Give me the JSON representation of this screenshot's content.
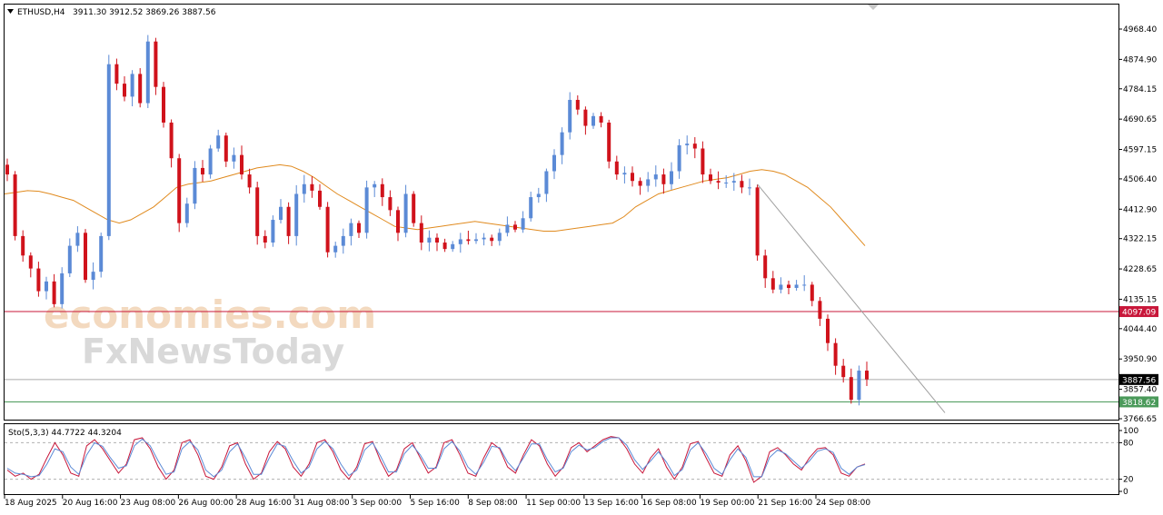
{
  "header": {
    "symbol": "ETHUSD,H4",
    "ohlc": "3911.30 3912.52 3869.26 3887.56"
  },
  "watermark": {
    "line1": "economies.com",
    "line2": "FxNewsToday"
  },
  "colors": {
    "bull_candle": "#5b8ad6",
    "bear_candle": "#d0121b",
    "moving_average": "#e08a1e",
    "resistance_line": "#c8173a",
    "support_line": "#4a9a5a",
    "current_price_line": "#aaaaaa",
    "trendline": "#a0a0a0",
    "stoch_main": "#c8173a",
    "stoch_signal": "#5b8ad6"
  },
  "chart_data": [
    {
      "type": "candlestick",
      "price_axis": {
        "range": [
          3766.65,
          4968.4
        ],
        "ticks": [
          "4968.40",
          "4874.90",
          "4784.15",
          "4690.65",
          "4597.15",
          "4506.40",
          "4412.90",
          "4322.15",
          "4228.65",
          "4135.15",
          "4044.40",
          "3950.90",
          "3857.40",
          "3766.65"
        ]
      },
      "time_axis": {
        "ticks": [
          "18 Aug 2025",
          "20 Aug 16:00",
          "23 Aug 08:00",
          "26 Aug 00:00",
          "28 Aug 16:00",
          "31 Aug 08:00",
          "3 Sep 00:00",
          "5 Sep 16:00",
          "8 Sep 08:00",
          "11 Sep 00:00",
          "13 Sep 16:00",
          "16 Sep 08:00",
          "19 Sep 00:00",
          "21 Sep 16:00",
          "24 Sep 08:00"
        ]
      },
      "price_path": [
        4520,
        4330,
        4270,
        4230,
        4160,
        4190,
        4120,
        4215,
        4300,
        4340,
        4195,
        4220,
        4330,
        4860,
        4800,
        4760,
        4830,
        4740,
        4930,
        4790,
        4680,
        4570,
        4370,
        4430,
        4540,
        4520,
        4600,
        4640,
        4560,
        4580,
        4520,
        4480,
        4330,
        4310,
        4380,
        4420,
        4330,
        4460,
        4490,
        4470,
        4420,
        4280,
        4300,
        4330,
        4370,
        4340,
        4480,
        4490,
        4450,
        4410,
        4340,
        4460,
        4370,
        4310,
        4325,
        4310,
        4290,
        4305,
        4320,
        4315,
        4320,
        4325,
        4315,
        4340,
        4365,
        4350,
        4385,
        4450,
        4460,
        4530,
        4580,
        4650,
        4750,
        4720,
        4670,
        4700,
        4680,
        4560,
        4520,
        4525,
        4500,
        4485,
        4505,
        4520,
        4490,
        4530,
        4610,
        4615,
        4600,
        4520,
        4500,
        4495,
        4495,
        4500,
        4480,
        4480,
        4270,
        4200,
        4165,
        4180,
        4170,
        4180,
        4180,
        4130,
        4075,
        4000,
        3930,
        3895,
        3825,
        3915,
        3888
      ],
      "series": [
        {
          "name": "",
          "kind": "moving-average",
          "values": [
            4460,
            4465,
            4470,
            4468,
            4460,
            4450,
            4440,
            4420,
            4400,
            4380,
            4370,
            4380,
            4400,
            4420,
            4450,
            4480,
            4490,
            4495,
            4500,
            4510,
            4520,
            4530,
            4540,
            4545,
            4550,
            4545,
            4530,
            4510,
            4485,
            4460,
            4440,
            4420,
            4400,
            4380,
            4360,
            4355,
            4350,
            4355,
            4360,
            4365,
            4370,
            4375,
            4370,
            4365,
            4360,
            4355,
            4350,
            4345,
            4345,
            4350,
            4355,
            4360,
            4365,
            4370,
            4390,
            4420,
            4440,
            4460,
            4470,
            4480,
            4490,
            4500,
            4505,
            4510,
            4520,
            4530,
            4535,
            4530,
            4520,
            4500,
            4480,
            4450,
            4420,
            4380,
            4340,
            4300
          ]
        }
      ],
      "horizontal_lines": [
        {
          "label": "4097.09",
          "price": 4097.09
        },
        {
          "label": "3887.56",
          "price": 3887.56
        },
        {
          "label": "3818.62",
          "price": 3818.62
        }
      ],
      "trendline": {
        "from": {
          "candle": 96,
          "price": 4490
        },
        "to": {
          "candle": 120,
          "price": 3785
        }
      }
    },
    {
      "type": "line",
      "title": "Sto(5,3,3) 44.7722 44.3204",
      "y_range": [
        0,
        100
      ],
      "y_ticks": [
        "100",
        "80",
        "20",
        "0"
      ],
      "levels": [
        80,
        20
      ],
      "series": [
        {
          "name": "",
          "values": [
            35,
            25,
            30,
            20,
            28,
            55,
            80,
            60,
            30,
            25,
            75,
            85,
            70,
            50,
            30,
            45,
            85,
            88,
            70,
            40,
            20,
            35,
            80,
            85,
            60,
            25,
            20,
            40,
            75,
            80,
            45,
            20,
            30,
            65,
            82,
            70,
            40,
            25,
            45,
            80,
            85,
            65,
            35,
            20,
            40,
            78,
            82,
            50,
            25,
            35,
            70,
            80,
            55,
            30,
            40,
            80,
            85,
            60,
            30,
            25,
            55,
            80,
            70,
            40,
            30,
            60,
            85,
            75,
            45,
            25,
            40,
            72,
            80,
            65,
            75,
            85,
            90,
            88,
            70,
            45,
            30,
            55,
            70,
            40,
            20,
            40,
            78,
            82,
            55,
            30,
            25,
            60,
            75,
            50,
            15,
            25,
            65,
            72,
            60,
            45,
            35,
            55,
            70,
            72,
            60,
            30,
            25,
            40,
            45
          ]
        },
        {
          "name": "",
          "values": [
            38,
            30,
            28,
            24,
            26,
            45,
            70,
            65,
            40,
            28,
            60,
            80,
            74,
            55,
            38,
            42,
            75,
            86,
            75,
            50,
            28,
            32,
            70,
            82,
            68,
            35,
            24,
            35,
            65,
            78,
            55,
            28,
            28,
            55,
            78,
            74,
            50,
            30,
            40,
            70,
            82,
            70,
            45,
            26,
            35,
            68,
            80,
            58,
            32,
            32,
            62,
            76,
            60,
            38,
            38,
            70,
            82,
            66,
            40,
            28,
            48,
            74,
            72,
            48,
            34,
            55,
            78,
            78,
            52,
            32,
            38,
            65,
            76,
            68,
            72,
            82,
            88,
            88,
            76,
            52,
            36,
            50,
            65,
            48,
            26,
            36,
            68,
            80,
            62,
            38,
            28,
            52,
            70,
            56,
            24,
            24,
            56,
            68,
            62,
            50,
            38,
            50,
            66,
            70,
            64,
            38,
            28,
            40,
            44
          ]
        }
      ]
    }
  ]
}
